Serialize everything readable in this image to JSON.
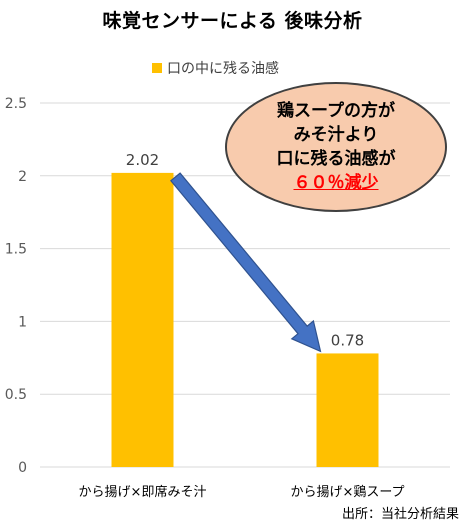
{
  "title": "味覚センサーによる 後味分析",
  "chart_data": {
    "type": "bar",
    "title": "味覚センサーによる 後味分析",
    "categories": [
      "から揚げ×即席みそ汁",
      "から揚げ×鶏スープ"
    ],
    "series": [
      {
        "name": "口の中に残る油感",
        "values": [
          2.02,
          0.78
        ],
        "color": "#ffc000"
      }
    ],
    "data_labels": [
      "2.02",
      "0.78"
    ],
    "ylim": [
      0,
      2.5
    ],
    "yticks": [
      0,
      0.5,
      1,
      1.5,
      2,
      2.5
    ],
    "ytick_labels": [
      "0",
      "0.5",
      "1",
      "1.5",
      "2",
      "2.5"
    ],
    "xlabel": "",
    "ylabel": "",
    "grid": true,
    "legend_position": "top",
    "annotation_arrow": {
      "from_category": 0,
      "to_category": 1,
      "color": "#4472c4"
    }
  },
  "callout": {
    "line1": "鶏スープの方が",
    "line2": "みそ汁より",
    "line3": "口に残る油感が",
    "highlight": "６０％減少",
    "highlight_color": "#ff0000",
    "background": "#f8cbad"
  },
  "source": "出所：当社分析結果",
  "colors": {
    "bar": "#ffc000",
    "arrow": "#4472c4",
    "grid": "#d9d9d9",
    "axis_text": "#595959"
  }
}
